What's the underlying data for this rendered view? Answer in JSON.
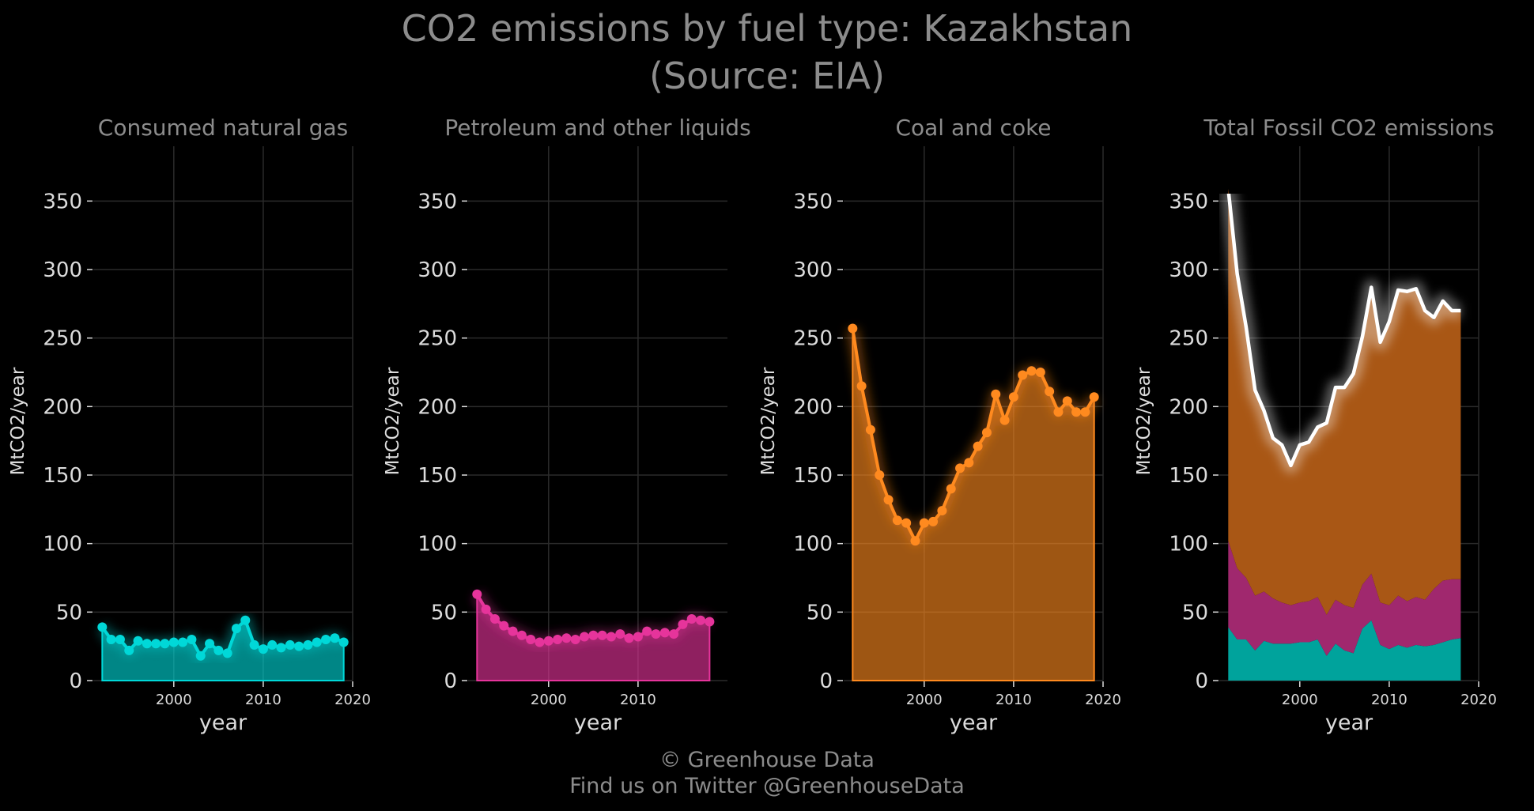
{
  "title_line1": "CO2 emissions by fuel type: Kazakhstan",
  "title_line2": "(Source: EIA)",
  "footer_line1": "© Greenhouse Data",
  "footer_line2": "Find us on Twitter @GreenhouseData",
  "chart_data": [
    {
      "type": "area",
      "title": "Consumed natural gas",
      "xlabel": "year",
      "ylabel": "MtCO2/year",
      "xlim": [
        1991,
        2020
      ],
      "ylim": [
        0,
        390
      ],
      "xticks": [
        2000,
        2010,
        2020
      ],
      "yticks": [
        0,
        50,
        100,
        150,
        200,
        250,
        300,
        350
      ],
      "color": "#00d8d8",
      "markers": true,
      "x": [
        1992,
        1993,
        1994,
        1995,
        1996,
        1997,
        1998,
        1999,
        2000,
        2001,
        2002,
        2003,
        2004,
        2005,
        2006,
        2007,
        2008,
        2009,
        2010,
        2011,
        2012,
        2013,
        2014,
        2015,
        2016,
        2017,
        2018,
        2019
      ],
      "values": [
        39,
        30,
        30,
        22,
        29,
        27,
        27,
        27,
        28,
        28,
        30,
        18,
        27,
        22,
        20,
        38,
        44,
        26,
        23,
        26,
        24,
        26,
        25,
        26,
        28,
        30,
        31,
        28
      ]
    },
    {
      "type": "area",
      "title": "Petroleum and other liquids",
      "xlabel": "year",
      "ylabel": "MtCO2/year",
      "xlim": [
        1991,
        2020
      ],
      "ylim": [
        0,
        390
      ],
      "xticks": [
        2000,
        2010
      ],
      "yticks": [
        0,
        50,
        100,
        150,
        200,
        250,
        300,
        350
      ],
      "color": "#e6349b",
      "markers": true,
      "x": [
        1992,
        1993,
        1994,
        1995,
        1996,
        1997,
        1998,
        1999,
        2000,
        2001,
        2002,
        2003,
        2004,
        2005,
        2006,
        2007,
        2008,
        2009,
        2010,
        2011,
        2012,
        2013,
        2014,
        2015,
        2016,
        2017,
        2018
      ],
      "values": [
        63,
        52,
        45,
        40,
        36,
        33,
        30,
        28,
        29,
        30,
        31,
        30,
        32,
        33,
        33,
        32,
        34,
        31,
        32,
        36,
        34,
        35,
        34,
        41,
        45,
        44,
        43
      ]
    },
    {
      "type": "area",
      "title": "Coal and coke",
      "xlabel": "year",
      "ylabel": "MtCO2/year",
      "xlim": [
        1991,
        2020
      ],
      "ylim": [
        0,
        390
      ],
      "xticks": [
        2000,
        2010,
        2020
      ],
      "yticks": [
        0,
        50,
        100,
        150,
        200,
        250,
        300,
        350
      ],
      "color": "#ff8a1f",
      "markers": true,
      "x": [
        1992,
        1993,
        1994,
        1995,
        1996,
        1997,
        1998,
        1999,
        2000,
        2001,
        2002,
        2003,
        2004,
        2005,
        2006,
        2007,
        2008,
        2009,
        2010,
        2011,
        2012,
        2013,
        2014,
        2015,
        2016,
        2017,
        2018,
        2019
      ],
      "values": [
        257,
        215,
        183,
        150,
        132,
        117,
        115,
        102,
        115,
        116,
        124,
        140,
        155,
        159,
        171,
        181,
        209,
        190,
        207,
        223,
        226,
        225,
        211,
        196,
        204,
        196,
        196,
        207
      ]
    },
    {
      "type": "area",
      "title": "Total Fossil CO2 emissions",
      "xlabel": "year",
      "ylabel": "MtCO2/year",
      "xlim": [
        1991,
        2020
      ],
      "ylim": [
        0,
        390
      ],
      "xticks": [
        2000,
        2010,
        2020
      ],
      "yticks": [
        0,
        50,
        100,
        150,
        200,
        250,
        300,
        350
      ],
      "stacked": true,
      "line_color": "#ffffff",
      "x": [
        1992,
        1993,
        1994,
        1995,
        1996,
        1997,
        1998,
        1999,
        2000,
        2001,
        2002,
        2003,
        2004,
        2005,
        2006,
        2007,
        2008,
        2009,
        2010,
        2011,
        2012,
        2013,
        2014,
        2015,
        2016,
        2017,
        2018
      ],
      "series": [
        {
          "color": "#00a39c",
          "values": [
            39,
            30,
            30,
            22,
            29,
            27,
            27,
            27,
            28,
            28,
            30,
            18,
            27,
            22,
            20,
            38,
            44,
            26,
            23,
            26,
            24,
            26,
            25,
            26,
            28,
            30,
            31
          ]
        },
        {
          "color": "#a0286e",
          "values": [
            63,
            52,
            45,
            40,
            36,
            33,
            30,
            28,
            29,
            30,
            31,
            30,
            32,
            33,
            33,
            32,
            34,
            31,
            32,
            36,
            34,
            35,
            34,
            41,
            45,
            44,
            43
          ]
        },
        {
          "color": "#a95715",
          "values": [
            257,
            215,
            183,
            150,
            132,
            117,
            115,
            102,
            115,
            116,
            124,
            140,
            155,
            159,
            171,
            181,
            209,
            190,
            207,
            223,
            226,
            225,
            211,
            196,
            204,
            196,
            196
          ]
        }
      ],
      "total": [
        359,
        297,
        258,
        212,
        197,
        177,
        172,
        157,
        172,
        174,
        185,
        188,
        214,
        214,
        224,
        251,
        287,
        247,
        262,
        285,
        284,
        286,
        270,
        265,
        277,
        270,
        270
      ]
    }
  ]
}
